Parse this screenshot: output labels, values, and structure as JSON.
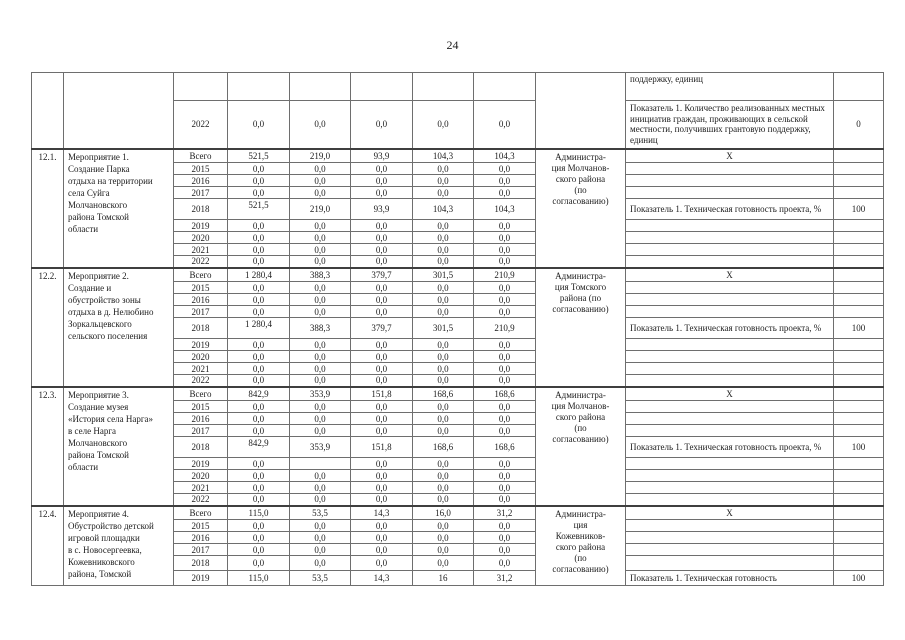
{
  "page": {
    "number": "24"
  },
  "table": {
    "carryover": {
      "num": "",
      "name": "",
      "executor": "",
      "rows": [
        {
          "year": "",
          "values": [
            "",
            "",
            "",
            "",
            ""
          ],
          "kind": "strip",
          "indicator": "поддержку, единиц"
        },
        {
          "year": "2022",
          "values": [
            "0,0",
            "0,0",
            "0,0",
            "0,0",
            "0,0"
          ],
          "kind": "wide",
          "indicator": "Показатель 1. Количество реализованных местных инициатив граждан, проживающих в сельской местности, получивших грантовую поддержку, единиц",
          "indicator_value": "0"
        }
      ]
    },
    "blocks": [
      {
        "num": "12.1.",
        "name": "Мероприятие 1.\nСоздание Парка\nотдыха на территории\nсела Суйга\nМолчановского\nрайона Томской\nобласти",
        "executor": "Администра-\nция Молчанов-\nского района\n(по\nсогласованию)",
        "rows": [
          {
            "year": "Всего",
            "values": [
              "521,5",
              "219,0",
              "93,9",
              "104,3",
              "104,3"
            ],
            "indicator": "Х"
          },
          {
            "year": "2015",
            "values": [
              "0,0",
              "0,0",
              "0,0",
              "0,0",
              "0,0"
            ]
          },
          {
            "year": "2016",
            "values": [
              "0,0",
              "0,0",
              "0,0",
              "0,0",
              "0,0"
            ]
          },
          {
            "year": "2017",
            "values": [
              "0,0",
              "0,0",
              "0,0",
              "0,0",
              "0,0"
            ]
          },
          {
            "year": "2018",
            "values": [
              "521,5",
              "219,0",
              "93,9",
              "104,3",
              "104,3"
            ],
            "kind": "tall",
            "v1_top": true,
            "indicator": "Показатель 1. Техническая готовность проекта, %",
            "indicator_value": "100"
          },
          {
            "year": "2019",
            "values": [
              "0,0",
              "0,0",
              "0,0",
              "0,0",
              "0,0"
            ]
          },
          {
            "year": "2020",
            "values": [
              "0,0",
              "0,0",
              "0,0",
              "0,0",
              "0,0"
            ]
          },
          {
            "year": "2021",
            "values": [
              "0,0",
              "0,0",
              "0,0",
              "0,0",
              "0,0"
            ]
          },
          {
            "year": "2022",
            "values": [
              "0,0",
              "0,0",
              "0,0",
              "0,0",
              "0,0"
            ]
          }
        ]
      },
      {
        "num": "12.2.",
        "name": "Мероприятие 2.\nСоздание и\nобустройство зоны\nотдыха в д. Нелюбино\nЗоркальцевского\nсельского поселения",
        "executor": "Администра-\nция Томского\nрайона (по\nсогласованию)",
        "rows": [
          {
            "year": "Всего",
            "values": [
              "1 280,4",
              "388,3",
              "379,7",
              "301,5",
              "210,9"
            ],
            "indicator": "Х"
          },
          {
            "year": "2015",
            "values": [
              "0,0",
              "0,0",
              "0,0",
              "0,0",
              "0,0"
            ]
          },
          {
            "year": "2016",
            "values": [
              "0,0",
              "0,0",
              "0,0",
              "0,0",
              "0,0"
            ]
          },
          {
            "year": "2017",
            "values": [
              "0,0",
              "0,0",
              "0,0",
              "0,0",
              "0,0"
            ]
          },
          {
            "year": "2018",
            "values": [
              "1 280,4",
              "388,3",
              "379,7",
              "301,5",
              "210,9"
            ],
            "kind": "tall",
            "v1_top": true,
            "indicator": "Показатель 1. Техническая готовность проекта, %",
            "indicator_value": "100"
          },
          {
            "year": "2019",
            "values": [
              "0,0",
              "0,0",
              "0,0",
              "0,0",
              "0,0"
            ]
          },
          {
            "year": "2020",
            "values": [
              "0,0",
              "0,0",
              "0,0",
              "0,0",
              "0,0"
            ]
          },
          {
            "year": "2021",
            "values": [
              "0,0",
              "0,0",
              "0,0",
              "0,0",
              "0,0"
            ]
          },
          {
            "year": "2022",
            "values": [
              "0,0",
              "0,0",
              "0,0",
              "0,0",
              "0,0"
            ]
          }
        ]
      },
      {
        "num": "12.3.",
        "name": "Мероприятие 3.\nСоздание музея\n«История села Нарга»\nв селе Нарга\nМолчановского\nрайона Томской\nобласти",
        "executor": "Администра-\nция Молчанов-\nского района\n(по\nсогласованию)",
        "rows": [
          {
            "year": "Всего",
            "values": [
              "842,9",
              "353,9",
              "151,8",
              "168,6",
              "168,6"
            ],
            "indicator": "Х"
          },
          {
            "year": "2015",
            "values": [
              "0,0",
              "0,0",
              "0,0",
              "0,0",
              "0,0"
            ]
          },
          {
            "year": "2016",
            "values": [
              "0,0",
              "0,0",
              "0,0",
              "0,0",
              "0,0"
            ]
          },
          {
            "year": "2017",
            "values": [
              "0,0",
              "0,0",
              "0,0",
              "0,0",
              "0,0"
            ]
          },
          {
            "year": "2018",
            "values": [
              "842,9",
              "353,9",
              "151,8",
              "168,6",
              "168,6"
            ],
            "kind": "tall",
            "v1_top": true,
            "indicator": "Показатель 1. Техническая готовность проекта, %",
            "indicator_value": "100"
          },
          {
            "year": "2019",
            "values": [
              "0,0",
              "",
              "0,0",
              "0,0",
              "0,0"
            ]
          },
          {
            "year": "2020",
            "values": [
              "0,0",
              "0,0",
              "0,0",
              "0,0",
              "0,0"
            ]
          },
          {
            "year": "2021",
            "values": [
              "0,0",
              "0,0",
              "0,0",
              "0,0",
              "0,0"
            ]
          },
          {
            "year": "2022",
            "values": [
              "0,0",
              "0,0",
              "0,0",
              "0,0",
              "0,0"
            ]
          }
        ]
      },
      {
        "num": "12.4.",
        "name": "Мероприятие 4.\nОбустройство детской\nигровой площадки\nв с. Новосергеевка,\nКожевниковского\nрайона, Томской",
        "executor": "Администра-\nция\nКожевников-\nского района\n(по\nсогласованию)",
        "rows": [
          {
            "year": "Всего",
            "values": [
              "115,0",
              "53,5",
              "14,3",
              "16,0",
              "31,2"
            ],
            "indicator": "Х"
          },
          {
            "year": "2015",
            "values": [
              "0,0",
              "0,0",
              "0,0",
              "0,0",
              "0,0"
            ]
          },
          {
            "year": "2016",
            "values": [
              "0,0",
              "0,0",
              "0,0",
              "0,0",
              "0,0"
            ]
          },
          {
            "year": "2017",
            "values": [
              "0,0",
              "0,0",
              "0,0",
              "0,0",
              "0,0"
            ]
          },
          {
            "year": "2018",
            "values": [
              "0,0",
              "0,0",
              "0,0",
              "0,0",
              "0,0"
            ],
            "kind": "m15"
          },
          {
            "year": "2019",
            "values": [
              "115,0",
              "53,5",
              "14,3",
              "16",
              "31,2"
            ],
            "kind": "m15",
            "indicator": "Показатель 1. Техническая готовность",
            "indicator_value": "100"
          }
        ]
      }
    ]
  }
}
